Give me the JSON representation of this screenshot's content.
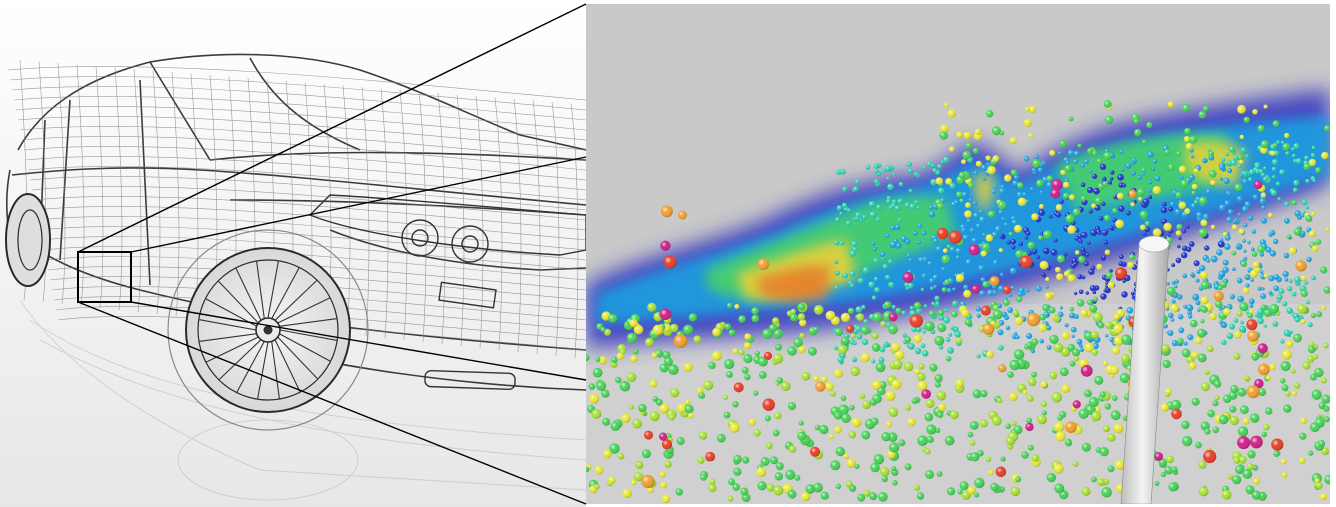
{
  "image": {
    "left_panel": {
      "subject": "car-wireframe",
      "background": "#ffffff",
      "line_color": "#3a3a3a"
    },
    "right_panel": {
      "subject": "particle-simulation",
      "background": "#c9c9c9",
      "probe_color": "#e4e4e4"
    },
    "zoom_box": {
      "color": "#000000"
    },
    "particle_palette": [
      "#2233cc",
      "#22a7e0",
      "#2fd3b0",
      "#49d35a",
      "#a8e03a",
      "#e8e83a",
      "#f0a030",
      "#e8402a",
      "#d0208a"
    ]
  }
}
